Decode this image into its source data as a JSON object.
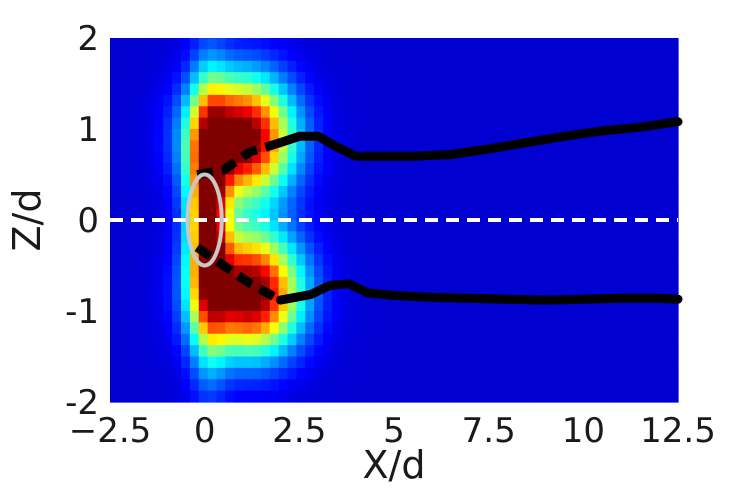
{
  "chart_data": {
    "type": "heatmap",
    "xlabel": "X/d",
    "ylabel": "Z/d",
    "xlim": [
      -2.5,
      12.5
    ],
    "ylim": [
      -2,
      2
    ],
    "x_ticks": [
      -2.5,
      0,
      2.5,
      5,
      7.5,
      10,
      12.5
    ],
    "x_tick_labels": [
      "−2.5",
      "0",
      "2.5",
      "5",
      "7.5",
      "10",
      "12.5"
    ],
    "y_ticks": [
      -2,
      -1,
      0,
      1,
      2
    ],
    "y_tick_labels": [
      "-2",
      "-1",
      "0",
      "1",
      "2"
    ],
    "grid": false,
    "colormap": "jet",
    "heat_lobes": [
      {
        "name": "upper-lobe",
        "x": 1.0,
        "z": 0.9,
        "sx": 0.9,
        "sz": 0.45,
        "peak": 1.0
      },
      {
        "name": "lower-lobe",
        "x": 1.2,
        "z": -0.8,
        "sx": 0.9,
        "sz": 0.45,
        "peak": 1.0
      },
      {
        "name": "center-core",
        "x": 0.1,
        "z": 0.0,
        "sx": 0.35,
        "sz": 0.9,
        "peak": 0.85
      }
    ],
    "series": [
      {
        "style": "dashed-thick",
        "color": "#000000",
        "points": [
          [
            -0.2,
            0.5
          ],
          [
            0.5,
            0.55
          ],
          [
            1.2,
            0.75
          ],
          [
            2.0,
            0.85
          ]
        ]
      },
      {
        "style": "solid-thick",
        "color": "#000000",
        "points": [
          [
            2.0,
            0.85
          ],
          [
            2.5,
            0.92
          ],
          [
            3.0,
            0.92
          ],
          [
            3.5,
            0.8
          ],
          [
            4.0,
            0.7
          ],
          [
            4.5,
            0.7
          ],
          [
            5.5,
            0.7
          ],
          [
            6.5,
            0.72
          ],
          [
            7.5,
            0.78
          ],
          [
            8.5,
            0.85
          ],
          [
            9.5,
            0.92
          ],
          [
            10.5,
            0.98
          ],
          [
            11.5,
            1.02
          ],
          [
            12.5,
            1.08
          ]
        ]
      },
      {
        "style": "dashed-thick",
        "color": "#000000",
        "points": [
          [
            -0.2,
            -0.3
          ],
          [
            0.5,
            -0.5
          ],
          [
            1.2,
            -0.7
          ],
          [
            2.0,
            -0.88
          ]
        ]
      },
      {
        "style": "solid-thick",
        "color": "#000000",
        "points": [
          [
            2.0,
            -0.88
          ],
          [
            2.8,
            -0.82
          ],
          [
            3.3,
            -0.72
          ],
          [
            3.8,
            -0.7
          ],
          [
            4.3,
            -0.8
          ],
          [
            5.0,
            -0.83
          ],
          [
            6.0,
            -0.85
          ],
          [
            7.0,
            -0.86
          ],
          [
            8.0,
            -0.87
          ],
          [
            9.0,
            -0.88
          ],
          [
            10.0,
            -0.87
          ],
          [
            11.0,
            -0.86
          ],
          [
            12.0,
            -0.86
          ],
          [
            12.5,
            -0.87
          ]
        ]
      },
      {
        "style": "dashed-white",
        "color": "#ffffff",
        "points": [
          [
            -2.5,
            0
          ],
          [
            12.5,
            0
          ]
        ]
      }
    ],
    "ellipse": {
      "cx": 0.0,
      "cz": 0.0,
      "rx": 0.45,
      "rz": 0.5,
      "color": "#c8c8c8"
    },
    "colors": {
      "background": "#00008f",
      "dashed_center": "#ffffff",
      "track": "#000000",
      "outline": "#c8c8c8"
    }
  }
}
